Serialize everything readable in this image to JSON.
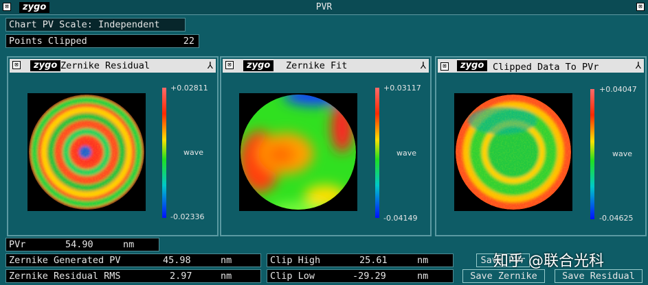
{
  "title": "PVR",
  "logo": "zygo",
  "chart_pv_scale": "Chart PV Scale: Independent",
  "points_clipped": {
    "label": "Points Clipped",
    "value": "22"
  },
  "panels": [
    {
      "title": "Zernike Residual",
      "max": "+0.02811",
      "unit": "wave",
      "min": "-0.02336"
    },
    {
      "title": "Zernike Fit",
      "max": "+0.03117",
      "unit": "wave",
      "min": "-0.04149"
    },
    {
      "title": "Clipped Data To PVr",
      "max": "+0.04047",
      "unit": "wave",
      "min": "-0.04625"
    }
  ],
  "stats": [
    {
      "label": "PVr",
      "value": "54.90",
      "unit": "nm"
    },
    {
      "label": "Zernike Generated PV",
      "value": "45.98",
      "unit": "nm"
    },
    {
      "label": "Zernike Residual RMS",
      "value": "2.97",
      "unit": "nm"
    },
    {
      "label": "Clip High",
      "value": "25.61",
      "unit": "nm"
    },
    {
      "label": "Clip Low",
      "value": "-29.29",
      "unit": "nm"
    }
  ],
  "buttons": [
    "Save PVr",
    "Save Zernike",
    "Save Residual"
  ],
  "watermark": "知乎 @联合光科"
}
